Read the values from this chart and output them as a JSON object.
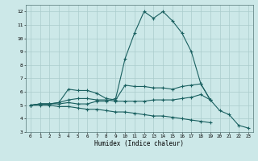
{
  "title": "",
  "xlabel": "Humidex (Indice chaleur)",
  "bg_color": "#cce8e8",
  "grid_color": "#aacccc",
  "line_color": "#1a6060",
  "xlim": [
    -0.5,
    23.5
  ],
  "ylim": [
    3,
    12.5
  ],
  "yticks": [
    3,
    4,
    5,
    6,
    7,
    8,
    9,
    10,
    11,
    12
  ],
  "xticks": [
    0,
    1,
    2,
    3,
    4,
    5,
    6,
    7,
    8,
    9,
    10,
    11,
    12,
    13,
    14,
    15,
    16,
    17,
    18,
    19,
    20,
    21,
    22,
    23
  ],
  "lines": [
    {
      "x": [
        0,
        1,
        2,
        3,
        4,
        5,
        6,
        7,
        8,
        9,
        10,
        11,
        12,
        13,
        14,
        15,
        16,
        17,
        18,
        19,
        20,
        21,
        22,
        23
      ],
      "y": [
        5.0,
        5.1,
        5.1,
        5.1,
        5.2,
        5.1,
        5.1,
        5.3,
        5.3,
        5.5,
        8.5,
        10.4,
        12.0,
        11.5,
        12.0,
        11.3,
        10.4,
        9.0,
        6.6,
        5.4,
        4.6,
        4.3,
        3.5,
        3.3
      ]
    },
    {
      "x": [
        0,
        1,
        2,
        3,
        4,
        5,
        6,
        7,
        8,
        9,
        10,
        11,
        12,
        13,
        14,
        15,
        16,
        17,
        18,
        19,
        20,
        21,
        22,
        23
      ],
      "y": [
        5.0,
        5.1,
        5.1,
        5.2,
        6.2,
        6.1,
        6.1,
        5.9,
        5.5,
        5.4,
        6.5,
        6.4,
        6.4,
        6.3,
        6.3,
        6.2,
        6.4,
        6.5,
        6.6,
        5.4,
        null,
        null,
        null,
        null
      ]
    },
    {
      "x": [
        0,
        1,
        2,
        3,
        4,
        5,
        6,
        7,
        8,
        9,
        10,
        11,
        12,
        13,
        14,
        15,
        16,
        17,
        18,
        19,
        20,
        21,
        22,
        23
      ],
      "y": [
        5.0,
        5.1,
        5.1,
        5.2,
        5.4,
        5.5,
        5.5,
        5.4,
        5.4,
        5.3,
        5.3,
        5.3,
        5.3,
        5.4,
        5.4,
        5.4,
        5.5,
        5.6,
        5.8,
        5.4,
        null,
        null,
        null,
        null
      ]
    },
    {
      "x": [
        0,
        1,
        2,
        3,
        4,
        5,
        6,
        7,
        8,
        9,
        10,
        11,
        12,
        13,
        14,
        15,
        16,
        17,
        18,
        19,
        20,
        21,
        22,
        23
      ],
      "y": [
        5.0,
        5.0,
        5.0,
        4.9,
        4.9,
        4.8,
        4.7,
        4.7,
        4.6,
        4.5,
        4.5,
        4.4,
        4.3,
        4.2,
        4.2,
        4.1,
        4.0,
        3.9,
        3.8,
        3.7,
        null,
        null,
        null,
        null
      ]
    }
  ]
}
